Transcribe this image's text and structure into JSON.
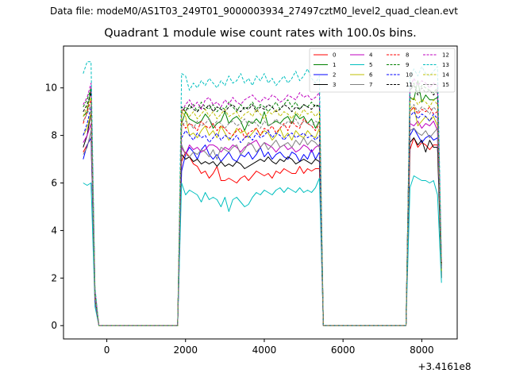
{
  "figure": {
    "suptitle": "Data file: modeM0/AS1T03_249T01_9000003934_27497cztM0_level2_quad_clean.evt"
  },
  "chart_data": {
    "type": "line",
    "title": "Quadrant 1 module wise count rates with 100.0s bins.",
    "xlabel": "",
    "ylabel": "",
    "x_offset_label": "+3.4161e8",
    "xlim": [
      -1100,
      8900
    ],
    "ylim": [
      -0.56,
      11.76
    ],
    "xticks": [
      0,
      2000,
      4000,
      6000,
      8000
    ],
    "yticks": [
      0,
      2,
      4,
      6,
      8,
      10
    ],
    "legend_position": "top-right",
    "legend_columns": 4,
    "grid": false,
    "x": [
      -600,
      -500,
      -400,
      -300,
      -200,
      1800,
      1900,
      2000,
      2100,
      2200,
      2300,
      2400,
      2500,
      2600,
      2700,
      2800,
      2900,
      3000,
      3100,
      3200,
      3300,
      3400,
      3500,
      3600,
      3700,
      3800,
      3900,
      4000,
      4100,
      4200,
      4300,
      4400,
      4500,
      4600,
      4700,
      4800,
      4900,
      5000,
      5100,
      5200,
      5300,
      5400,
      5500,
      7600,
      7700,
      7800,
      7900,
      8000,
      8100,
      8200,
      8300,
      8400,
      8500
    ],
    "series": [
      {
        "name": "0",
        "color": "#ff0000",
        "dash": false,
        "values": [
          7.3,
          7.6,
          7.9,
          1.0,
          0,
          0,
          6.9,
          7.3,
          7.1,
          6.8,
          6.7,
          6.4,
          6.5,
          6.2,
          6.4,
          6.7,
          6.1,
          6.1,
          6.2,
          6.1,
          6.0,
          6.2,
          6.3,
          6.1,
          6.3,
          6.5,
          6.4,
          6.3,
          6.4,
          6.2,
          6.5,
          6.4,
          6.6,
          6.5,
          6.4,
          6.4,
          6.7,
          6.4,
          6.6,
          6.5,
          6.6,
          6.6,
          0,
          0,
          7.4,
          7.9,
          7.5,
          7.7,
          7.6,
          7.4,
          7.6,
          7.6,
          2.6
        ]
      },
      {
        "name": "1",
        "color": "#008000",
        "dash": false,
        "values": [
          8.8,
          9.0,
          10.0,
          1.4,
          0,
          0,
          8.5,
          9.0,
          8.7,
          8.6,
          8.5,
          8.6,
          8.9,
          8.7,
          8.3,
          8.5,
          8.6,
          9.0,
          8.5,
          8.7,
          8.8,
          8.6,
          8.2,
          8.6,
          8.5,
          8.7,
          8.5,
          9.0,
          8.4,
          8.5,
          8.6,
          8.5,
          8.7,
          8.8,
          8.5,
          8.9,
          8.7,
          8.8,
          8.5,
          8.7,
          8.3,
          8.6,
          0,
          0,
          9.6,
          9.5,
          10.3,
          9.4,
          9.7,
          9.5,
          9.5,
          9.6,
          2.3
        ]
      },
      {
        "name": "2",
        "color": "#0000ff",
        "dash": false,
        "values": [
          7.0,
          7.6,
          7.9,
          1.0,
          0,
          0,
          6.5,
          7.2,
          7.5,
          7.3,
          7.0,
          7.4,
          7.6,
          7.2,
          7.0,
          7.2,
          6.9,
          7.1,
          7.3,
          7.0,
          6.9,
          7.2,
          7.1,
          7.3,
          7.0,
          7.2,
          7.5,
          7.1,
          7.3,
          7.0,
          7.2,
          7.3,
          7.1,
          7.0,
          7.3,
          7.2,
          6.9,
          7.2,
          7.0,
          7.4,
          7.0,
          7.3,
          0,
          0,
          8.0,
          8.3,
          8.0,
          7.7,
          7.9,
          8.0,
          7.8,
          7.9,
          2.4
        ]
      },
      {
        "name": "3",
        "color": "#000000",
        "dash": false,
        "values": [
          7.5,
          8.0,
          9.0,
          1.1,
          0,
          0,
          7.2,
          7.0,
          7.1,
          6.9,
          7.0,
          6.8,
          6.9,
          6.8,
          6.9,
          6.7,
          6.9,
          6.7,
          6.8,
          6.7,
          6.9,
          6.8,
          6.6,
          6.7,
          6.8,
          6.9,
          7.0,
          6.9,
          7.1,
          6.9,
          6.8,
          7.0,
          6.9,
          7.1,
          7.0,
          6.8,
          6.9,
          7.0,
          6.9,
          6.8,
          7.0,
          6.9,
          0,
          0,
          7.7,
          7.9,
          7.6,
          7.8,
          7.3,
          7.8,
          7.5,
          7.5,
          2.0
        ]
      },
      {
        "name": "4",
        "color": "#bf00bf",
        "dash": false,
        "values": [
          7.7,
          8.0,
          8.5,
          1.2,
          0,
          0,
          7.5,
          7.2,
          7.6,
          7.4,
          7.5,
          7.3,
          7.4,
          7.6,
          7.6,
          7.5,
          7.3,
          7.5,
          7.4,
          7.6,
          7.5,
          7.3,
          7.5,
          7.6,
          7.7,
          7.8,
          7.5,
          7.7,
          7.6,
          7.5,
          7.3,
          7.5,
          7.6,
          7.4,
          7.5,
          7.3,
          7.4,
          7.6,
          7.5,
          7.3,
          7.5,
          7.6,
          0,
          0,
          8.5,
          8.4,
          8.6,
          8.3,
          8.5,
          8.4,
          8.6,
          8.2,
          2.5
        ]
      },
      {
        "name": "5",
        "color": "#00bfbf",
        "dash": false,
        "values": [
          6.0,
          5.9,
          6.0,
          0.8,
          0,
          0,
          6.0,
          5.5,
          5.7,
          5.6,
          5.5,
          5.2,
          5.6,
          5.3,
          5.4,
          5.3,
          5.0,
          5.4,
          4.8,
          5.3,
          5.4,
          5.2,
          5.0,
          5.1,
          5.4,
          5.6,
          5.5,
          5.7,
          5.6,
          5.5,
          5.7,
          5.8,
          5.6,
          5.8,
          5.7,
          5.6,
          5.8,
          5.6,
          5.7,
          5.6,
          5.8,
          6.2,
          0,
          0,
          5.8,
          6.3,
          6.2,
          6.1,
          6.1,
          6.0,
          6.1,
          5.5,
          1.8
        ]
      },
      {
        "name": "6",
        "color": "#bfbf00",
        "dash": false,
        "values": [
          8.0,
          8.3,
          9.0,
          1.3,
          0,
          0,
          9.0,
          8.8,
          8.0,
          8.1,
          7.9,
          8.2,
          8.4,
          8.0,
          8.2,
          7.9,
          8.4,
          8.1,
          7.8,
          8.0,
          8.3,
          8.1,
          8.2,
          7.9,
          8.1,
          8.3,
          8.0,
          8.2,
          8.1,
          7.8,
          8.0,
          8.3,
          7.9,
          8.1,
          7.8,
          8.2,
          8.0,
          7.9,
          8.2,
          8.0,
          7.9,
          8.3,
          0,
          0,
          9.0,
          9.2,
          8.4,
          8.6,
          8.8,
          8.6,
          8.8,
          8.4,
          2.3
        ]
      },
      {
        "name": "7",
        "color": "#808080",
        "dash": false,
        "values": [
          7.2,
          7.5,
          8.2,
          1.0,
          0,
          0,
          7.6,
          7.2,
          7.1,
          7.3,
          7.2,
          7.4,
          7.3,
          7.1,
          7.4,
          7.0,
          7.5,
          7.4,
          7.3,
          7.5,
          7.6,
          7.2,
          7.4,
          7.7,
          7.6,
          7.3,
          7.5,
          7.7,
          7.4,
          7.6,
          7.8,
          7.5,
          7.6,
          7.7,
          7.5,
          7.8,
          7.6,
          7.9,
          7.6,
          7.8,
          7.7,
          7.5,
          0,
          0,
          8.2,
          8.3,
          8.1,
          8.0,
          8.2,
          7.9,
          8.1,
          8.3,
          2.4
        ]
      },
      {
        "name": "8",
        "color": "#ff0000",
        "dash": true,
        "values": [
          8.5,
          9.0,
          9.5,
          1.2,
          0,
          0,
          8.6,
          8.3,
          8.5,
          8.4,
          8.2,
          8.6,
          8.4,
          8.3,
          8.5,
          8.2,
          8.4,
          8.3,
          8.1,
          8.0,
          8.2,
          8.3,
          7.9,
          8.1,
          8.2,
          8.3,
          8.0,
          8.3,
          8.2,
          8.4,
          8.1,
          8.3,
          8.5,
          8.2,
          8.6,
          8.4,
          8.3,
          8.7,
          8.5,
          8.4,
          8.2,
          8.5,
          0,
          0,
          9.0,
          9.2,
          8.9,
          9.1,
          9.0,
          9.2,
          8.9,
          9.0,
          2.6
        ]
      },
      {
        "name": "9",
        "color": "#008000",
        "dash": true,
        "values": [
          9.2,
          9.5,
          10.0,
          1.4,
          0,
          0,
          9.0,
          9.2,
          9.1,
          9.3,
          9.0,
          9.4,
          9.2,
          9.1,
          9.3,
          9.0,
          9.2,
          9.1,
          9.4,
          9.2,
          9.0,
          9.3,
          9.1,
          9.2,
          9.4,
          9.1,
          9.3,
          9.2,
          9.0,
          9.2,
          9.4,
          9.1,
          9.3,
          9.5,
          9.2,
          9.4,
          9.1,
          9.3,
          9.2,
          9.4,
          9.2,
          9.3,
          0,
          0,
          9.9,
          10.2,
          9.8,
          10.1,
          10.0,
          9.9,
          9.8,
          10.0,
          2.6
        ]
      },
      {
        "name": "10",
        "color": "#0000ff",
        "dash": true,
        "values": [
          8.0,
          8.5,
          9.2,
          1.1,
          0,
          0,
          7.9,
          8.2,
          8.0,
          7.8,
          8.1,
          7.9,
          8.0,
          7.7,
          7.9,
          8.1,
          7.8,
          8.0,
          7.9,
          7.8,
          8.0,
          7.7,
          7.9,
          8.0,
          7.8,
          8.1,
          7.9,
          8.0,
          8.2,
          7.9,
          8.1,
          8.0,
          7.8,
          8.0,
          8.1,
          7.9,
          8.0,
          8.1,
          7.9,
          8.0,
          7.8,
          8.0,
          0,
          0,
          8.8,
          9.0,
          8.7,
          8.9,
          8.8,
          8.6,
          8.9,
          8.7,
          2.5
        ]
      },
      {
        "name": "11",
        "color": "#000000",
        "dash": true,
        "values": [
          9.0,
          9.3,
          9.8,
          1.3,
          0,
          0,
          9.2,
          9.0,
          9.3,
          9.1,
          9.0,
          9.2,
          9.1,
          9.3,
          9.0,
          9.2,
          9.1,
          9.0,
          9.2,
          9.3,
          9.1,
          9.0,
          9.2,
          9.1,
          9.3,
          9.0,
          9.2,
          9.1,
          9.3,
          9.2,
          9.0,
          9.1,
          9.3,
          9.2,
          9.0,
          9.2,
          9.1,
          9.3,
          9.2,
          9.1,
          9.3,
          9.2,
          0,
          0,
          9.9,
          10.1,
          9.7,
          10.0,
          9.8,
          9.9,
          9.7,
          9.9,
          2.5
        ]
      },
      {
        "name": "12",
        "color": "#bf00bf",
        "dash": true,
        "values": [
          9.3,
          9.6,
          10.2,
          1.5,
          0,
          0,
          9.0,
          9.3,
          9.5,
          9.2,
          9.4,
          9.1,
          9.5,
          9.6,
          9.3,
          9.4,
          9.2,
          9.5,
          9.3,
          9.6,
          9.4,
          9.3,
          9.5,
          9.6,
          9.7,
          9.5,
          9.4,
          9.6,
          9.5,
          9.7,
          9.6,
          9.4,
          9.5,
          9.7,
          9.6,
          9.5,
          9.8,
          9.6,
          9.7,
          9.5,
          9.6,
          9.8,
          0,
          0,
          10.0,
          10.4,
          10.1,
          10.3,
          10.2,
          10.0,
          10.2,
          10.1,
          2.7
        ]
      },
      {
        "name": "13",
        "color": "#00bfbf",
        "dash": true,
        "values": [
          10.6,
          11.1,
          11.1,
          1.6,
          0,
          0,
          10.6,
          10.5,
          9.9,
          10.2,
          10.0,
          10.3,
          10.1,
          10.4,
          10.2,
          10.0,
          10.3,
          10.1,
          10.5,
          10.2,
          10.3,
          10.6,
          10.2,
          10.4,
          10.1,
          10.5,
          10.3,
          10.6,
          10.2,
          10.4,
          10.1,
          10.3,
          10.5,
          10.2,
          10.4,
          10.7,
          10.3,
          10.5,
          10.8,
          10.4,
          10.2,
          10.5,
          0,
          0,
          10.4,
          10.8,
          10.5,
          10.9,
          10.6,
          10.5,
          10.7,
          10.9,
          2.8
        ]
      },
      {
        "name": "14",
        "color": "#bfbf00",
        "dash": true,
        "values": [
          8.8,
          9.2,
          9.6,
          1.3,
          0,
          0,
          9.1,
          9.0,
          8.8,
          9.0,
          8.7,
          8.9,
          9.1,
          8.8,
          9.0,
          8.7,
          8.9,
          9.1,
          8.8,
          8.9,
          9.0,
          8.7,
          8.9,
          9.0,
          8.8,
          9.1,
          8.9,
          8.7,
          9.0,
          8.9,
          9.1,
          8.8,
          9.0,
          8.9,
          8.7,
          9.0,
          8.8,
          9.1,
          8.9,
          9.0,
          8.8,
          9.0,
          0,
          0,
          9.4,
          9.6,
          9.3,
          9.5,
          9.4,
          9.2,
          9.5,
          9.3,
          2.5
        ]
      },
      {
        "name": "15",
        "color": "#808080",
        "dash": true,
        "values": [
          8.6,
          8.9,
          9.3,
          1.2,
          0,
          0,
          8.4,
          8.6,
          8.5,
          8.3,
          8.6,
          8.4,
          8.5,
          8.7,
          8.4,
          8.6,
          8.5,
          8.3,
          8.5,
          8.6,
          8.4,
          8.5,
          8.7,
          8.4,
          8.6,
          8.5,
          8.3,
          8.6,
          8.4,
          8.5,
          8.7,
          8.5,
          8.4,
          8.6,
          8.5,
          8.7,
          8.4,
          8.6,
          8.5,
          8.4,
          8.6,
          8.5,
          0,
          0,
          9.1,
          9.3,
          9.0,
          9.2,
          9.1,
          8.9,
          9.2,
          9.0,
          2.4
        ]
      }
    ]
  }
}
